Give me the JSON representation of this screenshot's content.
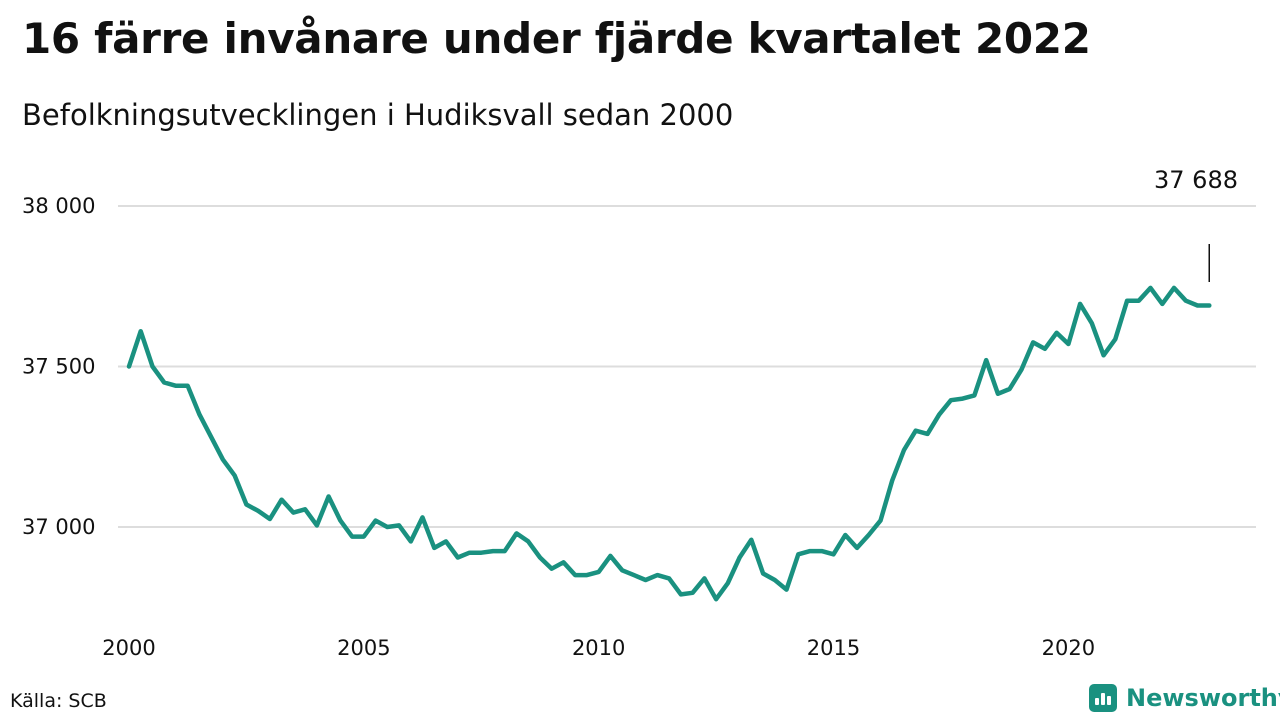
{
  "title": "16 färre invånare under fjärde kvartalet 2022",
  "subtitle": "Befolkningsutvecklingen i Hudiksvall sedan 2000",
  "source": "Källa: SCB",
  "brand": "Newsworthy",
  "colors": {
    "line": "#1a9180",
    "grid": "#dddddd",
    "brand": "#1a9180"
  },
  "icons": {
    "brand_logo": "bar-chart-icon"
  },
  "chart_data": {
    "type": "line",
    "title": "16 färre invånare under fjärde kvartalet 2022",
    "subtitle": "Befolkningsutvecklingen i Hudiksvall sedan 2000",
    "xlabel": "",
    "ylabel": "",
    "x_ticks": [
      2000,
      2005,
      2010,
      2015,
      2020
    ],
    "x_tick_labels": [
      "2000",
      "2005",
      "2010",
      "2015",
      "2020"
    ],
    "y_ticks": [
      37000,
      37500,
      38000
    ],
    "y_tick_labels": [
      "37 000",
      "37 500",
      "38 000"
    ],
    "ylim": [
      36770,
      38000
    ],
    "xlim": [
      2000,
      2023.25
    ],
    "grid": true,
    "end_label": "37 688",
    "series": [
      {
        "x": [
          2000.0,
          2000.25,
          2000.5,
          2000.75,
          2001.0,
          2001.25,
          2001.5,
          2001.75,
          2002.0,
          2002.25,
          2002.5,
          2002.75,
          2003.0,
          2003.25,
          2003.5,
          2003.75,
          2004.0,
          2004.25,
          2004.5,
          2004.75,
          2005.0,
          2005.25,
          2005.5,
          2005.75,
          2006.0,
          2006.25,
          2006.5,
          2006.75,
          2007.0,
          2007.25,
          2007.5,
          2007.75,
          2008.0,
          2008.25,
          2008.5,
          2008.75,
          2009.0,
          2009.25,
          2009.5,
          2009.75,
          2010.0,
          2010.25,
          2010.5,
          2010.75,
          2011.0,
          2011.25,
          2011.5,
          2011.75,
          2012.0,
          2012.25,
          2012.5,
          2012.75,
          2013.0,
          2013.25,
          2013.5,
          2013.75,
          2014.0,
          2014.25,
          2014.5,
          2014.75,
          2015.0,
          2015.25,
          2015.5,
          2015.75,
          2016.0,
          2016.25,
          2016.5,
          2016.75,
          2017.0,
          2017.25,
          2017.5,
          2017.75,
          2018.0,
          2018.25,
          2018.5,
          2018.75,
          2019.0,
          2019.25,
          2019.5,
          2019.75,
          2020.0,
          2020.25,
          2020.5,
          2020.75,
          2021.0,
          2021.25,
          2021.5,
          2021.75,
          2022.0,
          2022.25,
          2022.5,
          2022.75,
          2023.0
        ],
        "values": [
          37500,
          37610,
          37500,
          37450,
          37440,
          37440,
          37350,
          37280,
          37210,
          37160,
          37070,
          37050,
          37025,
          37085,
          37045,
          37055,
          37005,
          37095,
          37020,
          36970,
          36970,
          37020,
          37000,
          37005,
          36955,
          37030,
          36935,
          36955,
          36905,
          36920,
          36920,
          36925,
          36925,
          36980,
          36955,
          36905,
          36870,
          36890,
          36850,
          36850,
          36860,
          36910,
          36865,
          36850,
          36835,
          36850,
          36840,
          36790,
          36795,
          36840,
          36775,
          36825,
          36905,
          36960,
          36855,
          36835,
          36805,
          36915,
          36925,
          36925,
          36915,
          36975,
          36935,
          36975,
          37020,
          37145,
          37240,
          37300,
          37290,
          37350,
          37395,
          37400,
          37410,
          37520,
          37415,
          37430,
          37490,
          37575,
          37555,
          37605,
          37570,
          37695,
          37635,
          37535,
          37585,
          37705,
          37705,
          37745,
          37695,
          37745,
          37705,
          37690,
          37690
        ]
      }
    ]
  }
}
